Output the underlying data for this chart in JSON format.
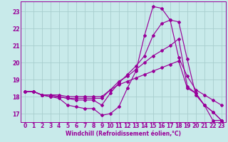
{
  "xlabel": "Windchill (Refroidissement éolien,°C)",
  "bg_color": "#c8eaea",
  "grid_color": "#a8cece",
  "line_color": "#990099",
  "xlim": [
    -0.5,
    23.5
  ],
  "ylim": [
    16.5,
    23.6
  ],
  "xticks": [
    0,
    1,
    2,
    3,
    4,
    5,
    6,
    7,
    8,
    9,
    10,
    11,
    12,
    13,
    14,
    15,
    16,
    17,
    18,
    19,
    20,
    21,
    22,
    23
  ],
  "yticks": [
    17,
    18,
    19,
    20,
    21,
    22,
    23
  ],
  "series": [
    [
      18.3,
      18.3,
      18.1,
      18.0,
      17.9,
      17.5,
      17.4,
      17.3,
      17.3,
      16.9,
      17.0,
      17.4,
      18.5,
      19.5,
      21.6,
      23.3,
      23.2,
      22.5,
      22.4,
      20.2,
      18.1,
      17.5,
      16.6,
      16.6
    ],
    [
      18.3,
      18.3,
      18.1,
      18.0,
      18.0,
      17.9,
      17.8,
      17.8,
      17.8,
      17.5,
      18.2,
      18.8,
      19.3,
      19.8,
      20.4,
      21.6,
      22.3,
      22.5,
      20.3,
      19.2,
      18.4,
      18.1,
      17.8,
      17.5
    ],
    [
      18.3,
      18.3,
      18.1,
      18.1,
      18.0,
      17.9,
      17.9,
      17.9,
      17.9,
      17.9,
      18.4,
      18.9,
      19.2,
      19.6,
      20.0,
      20.4,
      20.7,
      21.0,
      21.4,
      18.6,
      18.2,
      17.5,
      17.1,
      16.6
    ],
    [
      18.3,
      18.3,
      18.1,
      18.1,
      18.1,
      18.0,
      18.0,
      18.0,
      18.0,
      18.0,
      18.4,
      18.7,
      18.9,
      19.1,
      19.3,
      19.5,
      19.7,
      19.9,
      20.1,
      18.5,
      18.2,
      17.5,
      17.1,
      16.6
    ]
  ],
  "marker": "D",
  "markersize": 2.0,
  "linewidth": 0.85,
  "figsize": [
    3.2,
    2.0
  ],
  "dpi": 100,
  "tick_fontsize": 5.5,
  "label_fontsize": 5.5
}
